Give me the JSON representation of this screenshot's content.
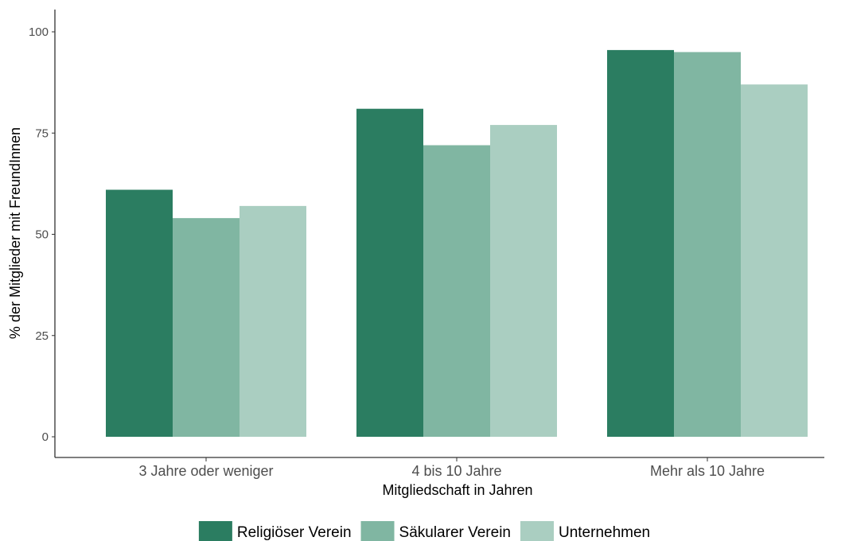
{
  "chart_data": {
    "type": "bar",
    "title": "",
    "xlabel": "Mitgliedschaft in Jahren",
    "ylabel": "% der Mitglieder mit FreundInnen",
    "categories": [
      "3 Jahre oder weniger",
      "4 bis 10 Jahre",
      "Mehr als 10 Jahre"
    ],
    "series": [
      {
        "name": "Religiöser Verein",
        "color": "#2b7d61",
        "values": [
          61,
          81,
          95.5
        ]
      },
      {
        "name": "Säkularer Verein",
        "color": "#80b6a2",
        "values": [
          54,
          72,
          95
        ]
      },
      {
        "name": "Unternehmen",
        "color": "#aacec1",
        "values": [
          57,
          77,
          87
        ]
      }
    ],
    "ylim": [
      0,
      100
    ],
    "yticks": [
      "0",
      "25",
      "50",
      "75",
      "100"
    ],
    "grid": false,
    "legend": "bottom"
  }
}
